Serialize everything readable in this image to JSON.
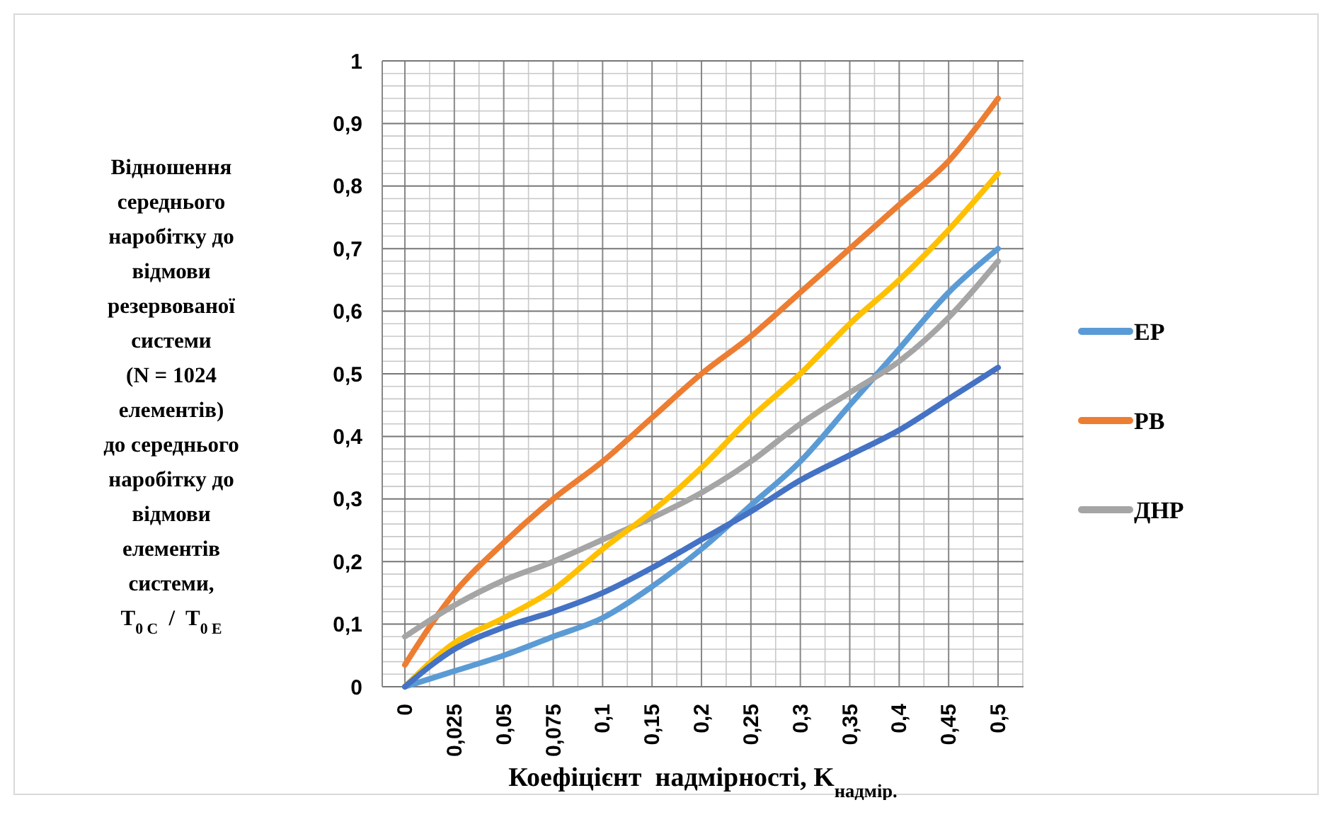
{
  "chart_data": {
    "type": "line",
    "ylabel": "Відношення\nсереднього\nнаробітку до\nвідмови\nрезервованої\nсистеми\n(N = 1024\nелементів)\nдо середнього\nнаробітку до\nвідмови\nелементів\nсистеми,\nT$_{0 C}$  /  T$_{0 E}$",
    "xlabel": "Коефіцієнт  надмірності, K$_{надмір.}$",
    "categories": [
      "0",
      "0,025",
      "0,05",
      "0,075",
      "0,1",
      "0,15",
      "0,2",
      "0,25",
      "0,3",
      "0,35",
      "0,4",
      "0,45",
      "0,5"
    ],
    "series": [
      {
        "name": "ЕР",
        "color": "#5b9bd5",
        "values": [
          0,
          0.025,
          0.05,
          0.08,
          0.11,
          0.16,
          0.22,
          0.29,
          0.36,
          0.45,
          0.54,
          0.63,
          0.7
        ]
      },
      {
        "name": "РВ",
        "color": "#ed7d31",
        "values": [
          0.035,
          0.15,
          0.23,
          0.3,
          0.36,
          0.43,
          0.5,
          0.56,
          0.63,
          0.7,
          0.77,
          0.84,
          0.94
        ]
      },
      {
        "name": "ДНР",
        "color": "#a5a5a5",
        "values": [
          0.08,
          0.13,
          0.17,
          0.2,
          0.235,
          0.27,
          0.31,
          0.36,
          0.42,
          0.47,
          0.52,
          0.59,
          0.68
        ]
      },
      {
        "color": "#ffc000",
        "values": [
          0,
          0.07,
          0.11,
          0.155,
          0.22,
          0.28,
          0.35,
          0.43,
          0.5,
          0.58,
          0.65,
          0.73,
          0.82
        ]
      },
      {
        "color": "#4472c4",
        "values": [
          0,
          0.06,
          0.095,
          0.12,
          0.15,
          0.19,
          0.235,
          0.28,
          0.33,
          0.37,
          0.41,
          0.46,
          0.51
        ]
      }
    ],
    "ylim": [
      0,
      1
    ],
    "yticks": [
      {
        "value": 0,
        "label": "0"
      },
      {
        "value": 0.1,
        "label": "0,1"
      },
      {
        "value": 0.2,
        "label": "0,2"
      },
      {
        "value": 0.3,
        "label": "0,3"
      },
      {
        "value": 0.4,
        "label": "0,4"
      },
      {
        "value": 0.5,
        "label": "0,5"
      },
      {
        "value": 0.6,
        "label": "0,6"
      },
      {
        "value": 0.7,
        "label": "0,7"
      },
      {
        "value": 0.8,
        "label": "0,8"
      },
      {
        "value": 0.9,
        "label": "0,9"
      },
      {
        "value": 1,
        "label": "1"
      }
    ],
    "grid": true,
    "legend": "right",
    "line_style": "solid"
  }
}
